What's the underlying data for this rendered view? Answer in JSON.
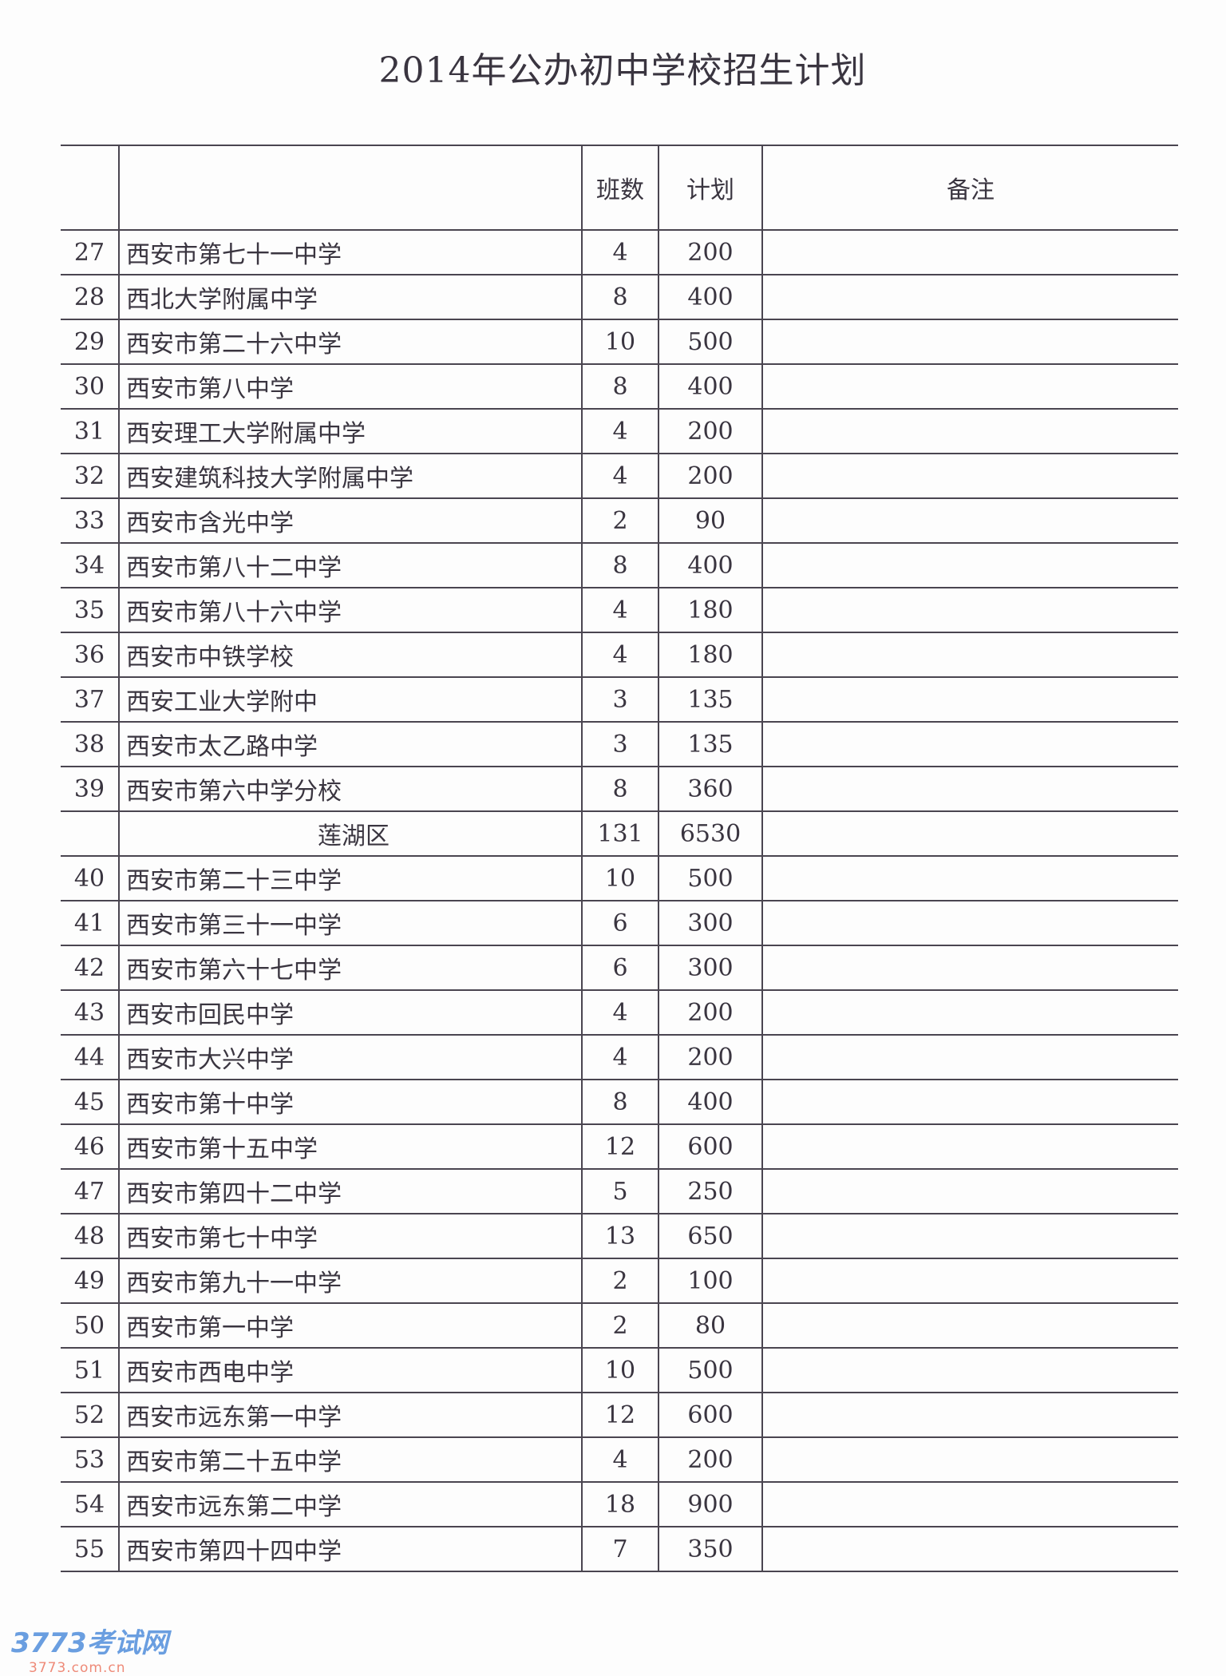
{
  "title": "2014年公办初中学校招生计划",
  "headers": {
    "num": "",
    "name": "",
    "classes": "班数",
    "plan": "计划",
    "note": "备注"
  },
  "rows": [
    {
      "num": "27",
      "name": "西安市第七十一中学",
      "classes": "4",
      "plan": "200",
      "note": ""
    },
    {
      "num": "28",
      "name": "西北大学附属中学",
      "classes": "8",
      "plan": "400",
      "note": ""
    },
    {
      "num": "29",
      "name": "西安市第二十六中学",
      "classes": "10",
      "plan": "500",
      "note": ""
    },
    {
      "num": "30",
      "name": "西安市第八中学",
      "classes": "8",
      "plan": "400",
      "note": ""
    },
    {
      "num": "31",
      "name": "西安理工大学附属中学",
      "classes": "4",
      "plan": "200",
      "note": ""
    },
    {
      "num": "32",
      "name": "西安建筑科技大学附属中学",
      "classes": "4",
      "plan": "200",
      "note": ""
    },
    {
      "num": "33",
      "name": "西安市含光中学",
      "classes": "2",
      "plan": "90",
      "note": ""
    },
    {
      "num": "34",
      "name": "西安市第八十二中学",
      "classes": "8",
      "plan": "400",
      "note": ""
    },
    {
      "num": "35",
      "name": "西安市第八十六中学",
      "classes": "4",
      "plan": "180",
      "note": ""
    },
    {
      "num": "36",
      "name": "西安市中铁学校",
      "classes": "4",
      "plan": "180",
      "note": ""
    },
    {
      "num": "37",
      "name": "西安工业大学附中",
      "classes": "3",
      "plan": "135",
      "note": ""
    },
    {
      "num": "38",
      "name": "西安市太乙路中学",
      "classes": "3",
      "plan": "135",
      "note": ""
    },
    {
      "num": "39",
      "name": "西安市第六中学分校",
      "classes": "8",
      "plan": "360",
      "note": ""
    },
    {
      "num": "",
      "name": "莲湖区",
      "classes": "131",
      "plan": "6530",
      "note": "",
      "subtotal": true
    },
    {
      "num": "40",
      "name": "西安市第二十三中学",
      "classes": "10",
      "plan": "500",
      "note": ""
    },
    {
      "num": "41",
      "name": "西安市第三十一中学",
      "classes": "6",
      "plan": "300",
      "note": ""
    },
    {
      "num": "42",
      "name": "西安市第六十七中学",
      "classes": "6",
      "plan": "300",
      "note": ""
    },
    {
      "num": "43",
      "name": "西安市回民中学",
      "classes": "4",
      "plan": "200",
      "note": ""
    },
    {
      "num": "44",
      "name": "西安市大兴中学",
      "classes": "4",
      "plan": "200",
      "note": ""
    },
    {
      "num": "45",
      "name": "西安市第十中学",
      "classes": "8",
      "plan": "400",
      "note": ""
    },
    {
      "num": "46",
      "name": "西安市第十五中学",
      "classes": "12",
      "plan": "600",
      "note": ""
    },
    {
      "num": "47",
      "name": "西安市第四十二中学",
      "classes": "5",
      "plan": "250",
      "note": ""
    },
    {
      "num": "48",
      "name": "西安市第七十中学",
      "classes": "13",
      "plan": "650",
      "note": ""
    },
    {
      "num": "49",
      "name": "西安市第九十一中学",
      "classes": "2",
      "plan": "100",
      "note": ""
    },
    {
      "num": "50",
      "name": "西安市第一中学",
      "classes": "2",
      "plan": "80",
      "note": ""
    },
    {
      "num": "51",
      "name": "西安市西电中学",
      "classes": "10",
      "plan": "500",
      "note": ""
    },
    {
      "num": "52",
      "name": "西安市远东第一中学",
      "classes": "12",
      "plan": "600",
      "note": ""
    },
    {
      "num": "53",
      "name": "西安市第二十五中学",
      "classes": "4",
      "plan": "200",
      "note": ""
    },
    {
      "num": "54",
      "name": "西安市远东第二中学",
      "classes": "18",
      "plan": "900",
      "note": ""
    },
    {
      "num": "55",
      "name": "西安市第四十四中学",
      "classes": "7",
      "plan": "350",
      "note": ""
    }
  ],
  "watermark": {
    "main": "3773考试网",
    "url": "3773.com.cn"
  }
}
